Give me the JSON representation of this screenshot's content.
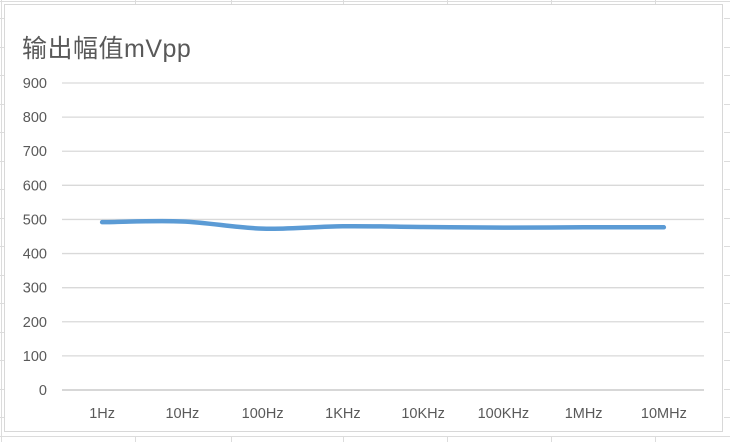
{
  "chart_data": {
    "type": "line",
    "title": "输出幅值mVpp",
    "categories": [
      "1Hz",
      "10Hz",
      "100Hz",
      "1KHz",
      "10KHz",
      "100KHz",
      "1MHz",
      "10MHz"
    ],
    "values": [
      492,
      494,
      473,
      480,
      478,
      476,
      477,
      477
    ],
    "yticks": [
      0,
      100,
      200,
      300,
      400,
      500,
      600,
      700,
      800,
      900
    ],
    "ylim": [
      0,
      900
    ],
    "xlabel": "",
    "ylabel": "",
    "grid": true,
    "legend": "none",
    "smooth": true,
    "colors": {
      "series": "#5B9BD5",
      "grid": "#D9D9D9",
      "axis": "#BFBFBF",
      "text": "#595959",
      "chart_border": "#D8D8D8",
      "sheet_grid": "#DCDCDC"
    }
  }
}
